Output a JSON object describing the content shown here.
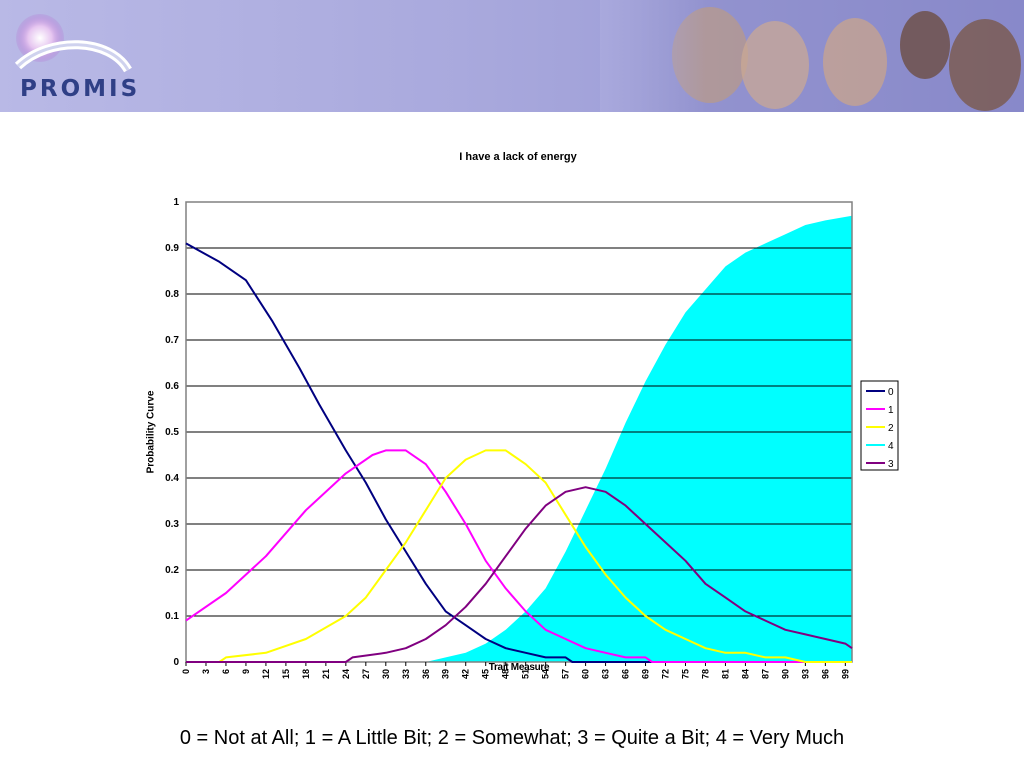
{
  "header": {
    "logo_text": "PROMIS"
  },
  "caption": "0 = Not at All; 1 = A Little Bit; 2 = Somewhat; 3 = Quite a Bit; 4 = Very Much",
  "chart_data": {
    "type": "line",
    "title": "I have a lack of energy",
    "xlabel": "Trait Measure",
    "ylabel": "Probability Curve",
    "xlim": [
      0,
      100
    ],
    "ylim": [
      0,
      1
    ],
    "grid": true,
    "legend_position": "right",
    "x_ticks": [
      "0",
      "3",
      "6",
      "9",
      "12",
      "15",
      "18",
      "21",
      "24",
      "27",
      "30",
      "33",
      "36",
      "39",
      "42",
      "45",
      "48",
      "51",
      "54",
      "57",
      "60",
      "63",
      "66",
      "69",
      "72",
      "75",
      "78",
      "81",
      "84",
      "87",
      "90",
      "93",
      "96",
      "99"
    ],
    "y_ticks": [
      "0",
      "0.1",
      "0.2",
      "0.3",
      "0.4",
      "0.5",
      "0.6",
      "0.7",
      "0.8",
      "0.9",
      "1"
    ],
    "series": [
      {
        "name": "0",
        "color": "#000080",
        "style": "line",
        "points": [
          [
            0,
            0.91
          ],
          [
            5,
            0.87
          ],
          [
            9,
            0.83
          ],
          [
            13,
            0.74
          ],
          [
            17,
            0.64
          ],
          [
            20,
            0.56
          ],
          [
            24,
            0.46
          ],
          [
            27,
            0.39
          ],
          [
            30,
            0.31
          ],
          [
            33,
            0.24
          ],
          [
            36,
            0.17
          ],
          [
            39,
            0.11
          ],
          [
            42,
            0.08
          ],
          [
            45,
            0.05
          ],
          [
            48,
            0.03
          ],
          [
            51,
            0.02
          ],
          [
            54,
            0.01
          ],
          [
            57,
            0.01
          ],
          [
            58,
            0.0
          ],
          [
            100,
            0.0
          ]
        ]
      },
      {
        "name": "1",
        "color": "#ff00ff",
        "style": "line",
        "points": [
          [
            0,
            0.09
          ],
          [
            6,
            0.15
          ],
          [
            12,
            0.23
          ],
          [
            18,
            0.33
          ],
          [
            24,
            0.41
          ],
          [
            28,
            0.45
          ],
          [
            30,
            0.46
          ],
          [
            33,
            0.46
          ],
          [
            36,
            0.43
          ],
          [
            39,
            0.37
          ],
          [
            42,
            0.3
          ],
          [
            45,
            0.22
          ],
          [
            48,
            0.16
          ],
          [
            51,
            0.11
          ],
          [
            54,
            0.07
          ],
          [
            57,
            0.05
          ],
          [
            60,
            0.03
          ],
          [
            63,
            0.02
          ],
          [
            66,
            0.01
          ],
          [
            69,
            0.01
          ],
          [
            70,
            0.0
          ],
          [
            100,
            0.0
          ]
        ]
      },
      {
        "name": "2",
        "color": "#ffff00",
        "style": "line",
        "points": [
          [
            0,
            0.0
          ],
          [
            5,
            0.0
          ],
          [
            6,
            0.01
          ],
          [
            12,
            0.02
          ],
          [
            18,
            0.05
          ],
          [
            24,
            0.1
          ],
          [
            27,
            0.14
          ],
          [
            30,
            0.2
          ],
          [
            33,
            0.26
          ],
          [
            36,
            0.33
          ],
          [
            39,
            0.4
          ],
          [
            42,
            0.44
          ],
          [
            45,
            0.46
          ],
          [
            48,
            0.46
          ],
          [
            51,
            0.43
          ],
          [
            54,
            0.39
          ],
          [
            57,
            0.32
          ],
          [
            60,
            0.25
          ],
          [
            63,
            0.19
          ],
          [
            66,
            0.14
          ],
          [
            69,
            0.1
          ],
          [
            72,
            0.07
          ],
          [
            75,
            0.05
          ],
          [
            78,
            0.03
          ],
          [
            81,
            0.02
          ],
          [
            84,
            0.02
          ],
          [
            87,
            0.01
          ],
          [
            90,
            0.01
          ],
          [
            93,
            0.0
          ],
          [
            100,
            0.0
          ]
        ]
      },
      {
        "name": "4",
        "color": "#00ffff",
        "style": "area",
        "points": [
          [
            0,
            0.0
          ],
          [
            36,
            0.0
          ],
          [
            39,
            0.01
          ],
          [
            42,
            0.02
          ],
          [
            45,
            0.04
          ],
          [
            48,
            0.07
          ],
          [
            51,
            0.11
          ],
          [
            54,
            0.16
          ],
          [
            57,
            0.24
          ],
          [
            60,
            0.33
          ],
          [
            63,
            0.42
          ],
          [
            66,
            0.52
          ],
          [
            69,
            0.61
          ],
          [
            72,
            0.69
          ],
          [
            75,
            0.76
          ],
          [
            78,
            0.81
          ],
          [
            81,
            0.86
          ],
          [
            84,
            0.89
          ],
          [
            87,
            0.91
          ],
          [
            90,
            0.93
          ],
          [
            93,
            0.95
          ],
          [
            96,
            0.96
          ],
          [
            100,
            0.97
          ]
        ]
      },
      {
        "name": "3",
        "color": "#800080",
        "style": "line",
        "points": [
          [
            0,
            0.0
          ],
          [
            24,
            0.0
          ],
          [
            25,
            0.01
          ],
          [
            30,
            0.02
          ],
          [
            33,
            0.03
          ],
          [
            36,
            0.05
          ],
          [
            39,
            0.08
          ],
          [
            42,
            0.12
          ],
          [
            45,
            0.17
          ],
          [
            48,
            0.23
          ],
          [
            51,
            0.29
          ],
          [
            54,
            0.34
          ],
          [
            57,
            0.37
          ],
          [
            60,
            0.38
          ],
          [
            63,
            0.37
          ],
          [
            66,
            0.34
          ],
          [
            69,
            0.3
          ],
          [
            72,
            0.26
          ],
          [
            75,
            0.22
          ],
          [
            78,
            0.17
          ],
          [
            81,
            0.14
          ],
          [
            84,
            0.11
          ],
          [
            87,
            0.09
          ],
          [
            90,
            0.07
          ],
          [
            93,
            0.06
          ],
          [
            96,
            0.05
          ],
          [
            99,
            0.04
          ],
          [
            100,
            0.03
          ]
        ]
      }
    ]
  }
}
